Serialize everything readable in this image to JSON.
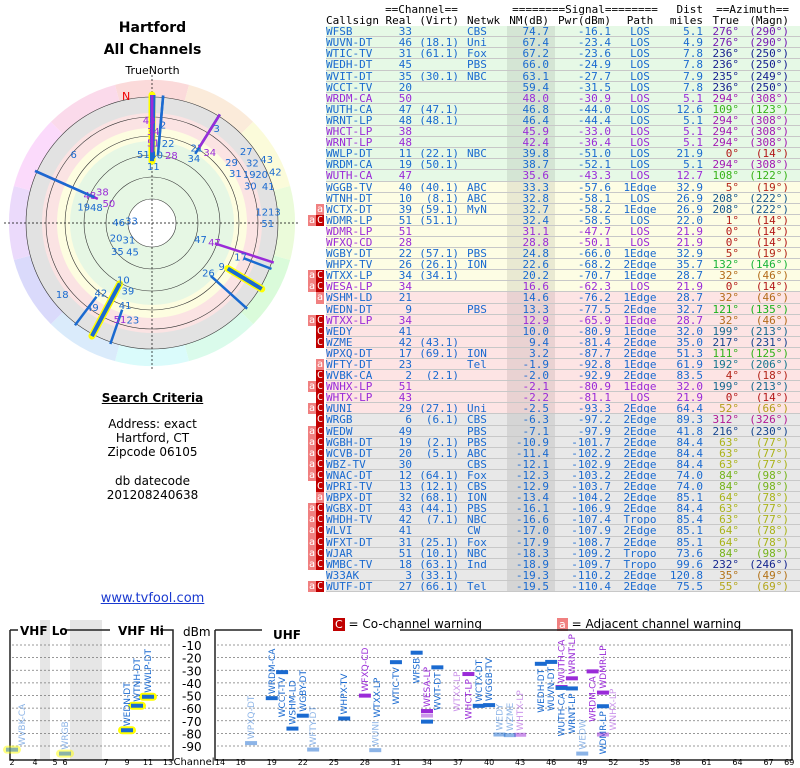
{
  "left": {
    "title": "Hartford",
    "subtitle": "All Channels",
    "north_label": "TrueNorth",
    "n_marker": "N",
    "criteria_title": "Search Criteria",
    "address": "Address: exact",
    "city": "Hartford, CT",
    "zip": "Zipcode 06105",
    "db_label": "db datecode",
    "db_value": "201208240638",
    "link": "www.tvfool.com"
  },
  "table": {
    "group_headers": [
      "==Channel==",
      "========Signal========",
      "Dist",
      "==Azimuth=="
    ],
    "headers": [
      "Callsign",
      "Real",
      "(Virt)",
      "Netwk",
      "NM(dB)",
      "Pwr(dBm)",
      "Path",
      "miles",
      "True",
      "(Magn)"
    ],
    "rows": [
      [
        "WFSB",
        "33",
        "",
        "CBS",
        "74.7",
        "-16.1",
        "LOS",
        "5.1",
        "276°",
        "(290°)",
        "",
        false,
        "g"
      ],
      [
        "WUVN-DT",
        "46",
        "(18.1)",
        "Uni",
        "67.4",
        "-23.4",
        "LOS",
        "4.9",
        "276°",
        "(290°)",
        "",
        false,
        "g"
      ],
      [
        "WTIC-TV",
        "31",
        "(61.1)",
        "Fox",
        "67.2",
        "-23.6",
        "LOS",
        "7.8",
        "236°",
        "(250°)",
        "",
        false,
        "g"
      ],
      [
        "WEDH-DT",
        "45",
        "",
        "PBS",
        "66.0",
        "-24.9",
        "LOS",
        "7.8",
        "236°",
        "(250°)",
        "",
        false,
        "g"
      ],
      [
        "WVIT-DT",
        "35",
        "(30.1)",
        "NBC",
        "63.1",
        "-27.7",
        "LOS",
        "7.9",
        "235°",
        "(249°)",
        "",
        false,
        "g"
      ],
      [
        "WCCT-TV",
        "20",
        "",
        "",
        "59.4",
        "-31.5",
        "LOS",
        "7.8",
        "236°",
        "(250°)",
        "",
        false,
        "g"
      ],
      [
        "WRDM-CA",
        "50",
        "",
        "",
        "48.0",
        "-30.9",
        "LOS",
        "5.1",
        "294°",
        "(308°)",
        "",
        true,
        "g"
      ],
      [
        "WUTH-CA",
        "47",
        "(47.1)",
        "",
        "46.8",
        "-44.0",
        "LOS",
        "12.6",
        "109°",
        "(123°)",
        "",
        false,
        "g"
      ],
      [
        "WRNT-LP",
        "48",
        "(48.1)",
        "",
        "46.4",
        "-44.4",
        "LOS",
        "5.1",
        "294°",
        "(308°)",
        "",
        false,
        "g"
      ],
      [
        "WHCT-LP",
        "38",
        "",
        "",
        "45.9",
        "-33.0",
        "LOS",
        "5.1",
        "294°",
        "(308°)",
        "",
        true,
        "g"
      ],
      [
        "WRNT-LP",
        "48",
        "",
        "",
        "42.4",
        "-36.4",
        "LOS",
        "5.1",
        "294°",
        "(308°)",
        "",
        true,
        "g"
      ],
      [
        "WWLP-DT",
        "11",
        "(22.1)",
        "NBC",
        "39.8",
        "-51.0",
        "LOS",
        "21.9",
        "0°",
        "(14°)",
        "",
        false,
        "g"
      ],
      [
        "WRDM-CA",
        "19",
        "(50.1)",
        "",
        "38.7",
        "-52.1",
        "LOS",
        "5.1",
        "294°",
        "(308°)",
        "",
        false,
        "g"
      ],
      [
        "WUTH-CA",
        "47",
        "",
        "",
        "35.6",
        "-43.3",
        "LOS",
        "12.7",
        "108°",
        "(122°)",
        "",
        true,
        "g"
      ],
      [
        "WGGB-TV",
        "40",
        "(40.1)",
        "ABC",
        "33.3",
        "-57.6",
        "1Edge",
        "32.9",
        "5°",
        "(19°)",
        "",
        false,
        "y"
      ],
      [
        "WTNH-DT",
        "10",
        "(8.1)",
        "ABC",
        "32.8",
        "-58.1",
        "LOS",
        "26.9",
        "208°",
        "(222°)",
        "",
        false,
        "y"
      ],
      [
        "WCTX-DT",
        "39",
        "(59.1)",
        "MyN",
        "32.7",
        "-58.2",
        "1Edge",
        "26.9",
        "208°",
        "(222°)",
        "a",
        false,
        "y"
      ],
      [
        "WDMR-LP",
        "51",
        "(51.1)",
        "",
        "32.4",
        "-58.5",
        "LOS",
        "22.0",
        "1°",
        "(14°)",
        "aC",
        false,
        "y"
      ],
      [
        "WDMR-LP",
        "51",
        "",
        "",
        "31.1",
        "-47.7",
        "LOS",
        "21.9",
        "0°",
        "(14°)",
        "",
        true,
        "y"
      ],
      [
        "WFXQ-CD",
        "28",
        "",
        "",
        "28.8",
        "-50.1",
        "LOS",
        "21.9",
        "0°",
        "(14°)",
        "",
        true,
        "y"
      ],
      [
        "WGBY-DT",
        "22",
        "(57.1)",
        "PBS",
        "24.8",
        "-66.0",
        "1Edge",
        "32.9",
        "5°",
        "(19°)",
        "",
        false,
        "y"
      ],
      [
        "WHPX-TV",
        "26",
        "(26.1)",
        "ION",
        "22.6",
        "-68.2",
        "2Edge",
        "35.7",
        "132°",
        "(146°)",
        "",
        false,
        "y"
      ],
      [
        "WTXX-LP",
        "34",
        "(34.1)",
        "",
        "20.2",
        "-70.7",
        "1Edge",
        "28.7",
        "32°",
        "(46°)",
        "aC",
        false,
        "y"
      ],
      [
        "WESA-LP",
        "34",
        "",
        "",
        "16.6",
        "-62.3",
        "LOS",
        "21.9",
        "0°",
        "(14°)",
        "aC",
        true,
        "y"
      ],
      [
        "WSHM-LD",
        "21",
        "",
        "",
        "14.6",
        "-76.2",
        "1Edge",
        "28.7",
        "32°",
        "(46°)",
        "a",
        false,
        "p"
      ],
      [
        "WEDN-DT",
        "9",
        "",
        "PBS",
        "13.3",
        "-77.5",
        "2Edge",
        "32.7",
        "121°",
        "(135°)",
        "",
        false,
        "p"
      ],
      [
        "WTXX-LP",
        "34",
        "",
        "",
        "12.9",
        "-65.9",
        "1Edge",
        "28.7",
        "32°",
        "(46°)",
        "aC",
        true,
        "p"
      ],
      [
        "WEDY",
        "41",
        "",
        "",
        "10.0",
        "-80.9",
        "1Edge",
        "32.0",
        "199°",
        "(213°)",
        "C",
        false,
        "p"
      ],
      [
        "WZME",
        "42",
        "(43.1)",
        "",
        "9.4",
        "-81.4",
        "2Edge",
        "35.0",
        "217°",
        "(231°)",
        "C",
        false,
        "p"
      ],
      [
        "WPXQ-DT",
        "17",
        "(69.1)",
        "ION",
        "3.2",
        "-87.7",
        "2Edge",
        "51.3",
        "111°",
        "(125°)",
        "",
        false,
        "p"
      ],
      [
        "WFTY-DT",
        "23",
        "",
        "Tel",
        "-1.9",
        "-92.8",
        "1Edge",
        "61.9",
        "192°",
        "(206°)",
        "a",
        false,
        "p"
      ],
      [
        "WVBK-CA",
        "2",
        "(2.1)",
        "",
        "-2.0",
        "-92.9",
        "2Edge",
        "83.5",
        "4°",
        "(18°)",
        "C",
        false,
        "p"
      ],
      [
        "WNHX-LP",
        "51",
        "",
        "",
        "-2.1",
        "-80.9",
        "1Edge",
        "32.0",
        "199°",
        "(213°)",
        "aC",
        true,
        "p"
      ],
      [
        "WHTX-LP",
        "43",
        "",
        "",
        "-2.2",
        "-81.1",
        "LOS",
        "21.9",
        "0°",
        "(14°)",
        "C",
        true,
        "p"
      ],
      [
        "WUNI",
        "29",
        "(27.1)",
        "Uni",
        "-2.5",
        "-93.3",
        "2Edge",
        "64.4",
        "52°",
        "(66°)",
        "aC",
        false,
        "p"
      ],
      [
        "WRGB",
        "6",
        "(6.1)",
        "CBS",
        "-6.3",
        "-97.2",
        "2Edge",
        "89.3",
        "312°",
        "(326°)",
        "C",
        false,
        "n"
      ],
      [
        "WEDW",
        "49",
        "",
        "PBS",
        "-7.1",
        "-97.9",
        "2Edge",
        "41.8",
        "216°",
        "(230°)",
        "aC",
        false,
        "n"
      ],
      [
        "WGBH-DT",
        "19",
        "(2.1)",
        "PBS",
        "-10.9",
        "-101.7",
        "2Edge",
        "84.4",
        "63°",
        "(77°)",
        "aC",
        false,
        "n"
      ],
      [
        "WCVB-DT",
        "20",
        "(5.1)",
        "ABC",
        "-11.4",
        "-102.2",
        "2Edge",
        "84.4",
        "63°",
        "(77°)",
        "aC",
        false,
        "n"
      ],
      [
        "WBZ-TV",
        "30",
        "",
        "CBS",
        "-12.1",
        "-102.9",
        "2Edge",
        "84.4",
        "63°",
        "(77°)",
        "aC",
        false,
        "n"
      ],
      [
        "WNAC-DT",
        "12",
        "(64.1)",
        "Fox",
        "-12.3",
        "-103.2",
        "2Edge",
        "74.0",
        "84°",
        "(98°)",
        "aC",
        false,
        "n"
      ],
      [
        "WPRI-TV",
        "13",
        "(12.1)",
        "CBS",
        "-12.9",
        "-103.7",
        "2Edge",
        "74.0",
        "84°",
        "(98°)",
        "C",
        false,
        "n"
      ],
      [
        "WBPX-DT",
        "32",
        "(68.1)",
        "ION",
        "-13.4",
        "-104.2",
        "2Edge",
        "85.1",
        "64°",
        "(78°)",
        "a",
        false,
        "n"
      ],
      [
        "WGBX-DT",
        "43",
        "(44.1)",
        "PBS",
        "-16.1",
        "-106.9",
        "2Edge",
        "84.4",
        "63°",
        "(77°)",
        "aC",
        false,
        "n"
      ],
      [
        "WHDH-TV",
        "42",
        "(7.1)",
        "NBC",
        "-16.6",
        "-107.4",
        "Tropo",
        "85.4",
        "63°",
        "(77°)",
        "aC",
        false,
        "n"
      ],
      [
        "WLVI",
        "41",
        "",
        "CW",
        "-17.0",
        "-107.9",
        "2Edge",
        "85.1",
        "64°",
        "(78°)",
        "aC",
        false,
        "n"
      ],
      [
        "WFXT-DT",
        "31",
        "(25.1)",
        "Fox",
        "-17.9",
        "-108.7",
        "2Edge",
        "85.1",
        "64°",
        "(78°)",
        "aC",
        false,
        "n"
      ],
      [
        "WJAR",
        "51",
        "(10.1)",
        "NBC",
        "-18.3",
        "-109.2",
        "Tropo",
        "73.6",
        "84°",
        "(98°)",
        "aC",
        false,
        "n"
      ],
      [
        "WMBC-TV",
        "18",
        "(63.1)",
        "Ind",
        "-18.9",
        "-109.7",
        "Tropo",
        "99.6",
        "232°",
        "(246°)",
        "aC",
        false,
        "n"
      ],
      [
        "W33AK",
        "3",
        "(33.1)",
        "",
        "-19.3",
        "-110.2",
        "2Edge",
        "120.8",
        "35°",
        "(49°)",
        "",
        false,
        "n"
      ],
      [
        "WUTF-DT",
        "27",
        "(66.1)",
        "Tel",
        "-19.5",
        "-110.4",
        "2Edge",
        "75.5",
        "55°",
        "(69°)",
        "aC",
        false,
        "n"
      ]
    ]
  },
  "legend": {
    "co_badge": "C",
    "co_text": "= Co-channel warning",
    "adj_badge": "a",
    "adj_text": "= Adjacent channel warning"
  },
  "chart": {
    "vhf_lo": "VHF Lo",
    "vhf_hi": "VHF Hi",
    "uhf": "UHF",
    "unit": "dBm",
    "channel_label": "Channel",
    "y_ticks": [
      "-10",
      "-20",
      "-30",
      "-40",
      "-50",
      "-60",
      "-70",
      "-80",
      "-90"
    ],
    "vhf_ticks": [
      "2",
      "4",
      "5",
      "6",
      "7",
      "9",
      "11",
      "13"
    ],
    "uhf_ticks": [
      "14",
      "16",
      "19",
      "22",
      "25",
      "28",
      "31",
      "34",
      "37",
      "40",
      "43",
      "46",
      "49",
      "52",
      "55",
      "58",
      "61",
      "64",
      "67",
      "69"
    ]
  },
  "colors": {
    "digital": "#1a6ad0",
    "analog": "#9a2bd8",
    "co": "#c00000",
    "adj": "#f08080",
    "green": "#e6f9e6",
    "yellow": "#fdfde4",
    "pink": "#fde4e4",
    "gray": "#e8e8e8"
  }
}
